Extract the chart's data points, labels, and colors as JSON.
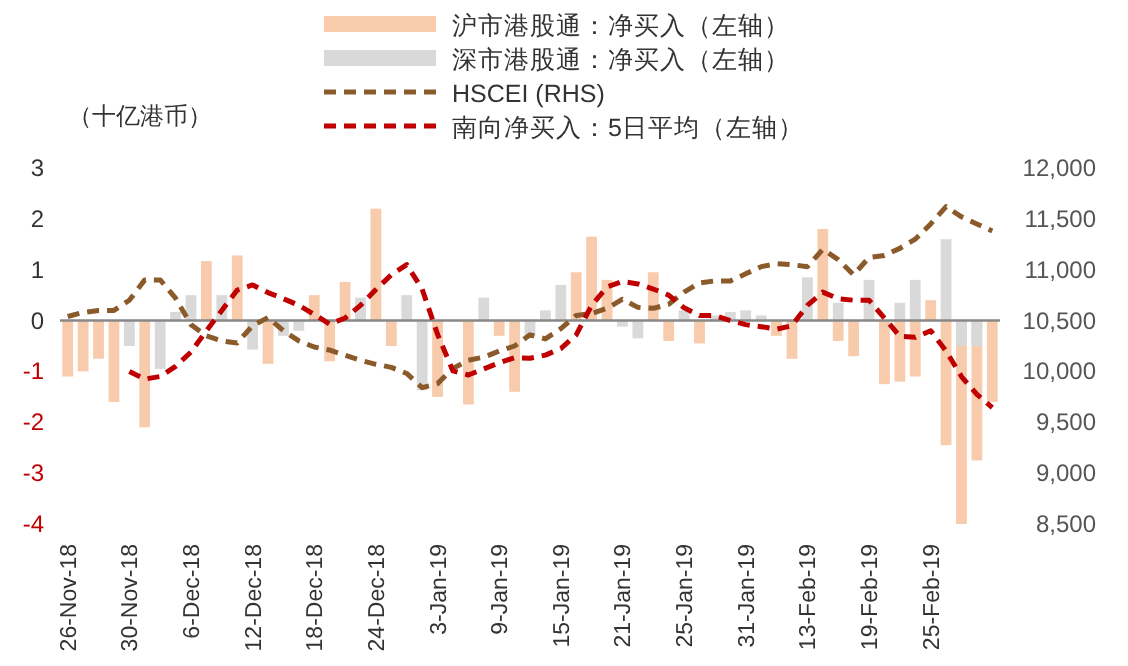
{
  "chart_data": {
    "type": "bar",
    "ylabel": "（十亿港币）",
    "categories": [
      "26-Nov-18",
      null,
      null,
      null,
      "30-Nov-18",
      null,
      null,
      null,
      "6-Dec-18",
      null,
      null,
      null,
      "12-Dec-18",
      null,
      null,
      null,
      "18-Dec-18",
      null,
      null,
      null,
      "24-Dec-18",
      null,
      null,
      null,
      "3-Jan-19",
      null,
      null,
      null,
      "9-Jan-19",
      null,
      null,
      null,
      "15-Jan-19",
      null,
      null,
      null,
      "21-Jan-19",
      null,
      null,
      null,
      "25-Jan-19",
      null,
      null,
      null,
      "31-Jan-19",
      null,
      null,
      null,
      "13-Feb-19",
      null,
      null,
      null,
      "19-Feb-19",
      null,
      null,
      null,
      "25-Feb-19",
      null,
      null,
      null,
      null
    ],
    "series": [
      {
        "name": "沪市港股通：净买入（左轴）",
        "color": "#f8cbad",
        "values": [
          -1.1,
          -1.0,
          -0.75,
          -1.6,
          null,
          -2.1,
          null,
          null,
          null,
          1.17,
          null,
          1.28,
          null,
          -0.85,
          null,
          null,
          0.5,
          -0.8,
          0.76,
          null,
          2.2,
          -0.5,
          null,
          null,
          -1.5,
          null,
          -1.65,
          null,
          -0.3,
          -1.4,
          null,
          null,
          null,
          0.95,
          1.65,
          0.8,
          null,
          null,
          0.95,
          -0.4,
          null,
          -0.45,
          null,
          null,
          null,
          null,
          -0.3,
          -0.75,
          null,
          1.8,
          -0.4,
          -0.7,
          null,
          -1.25,
          -1.2,
          -1.1,
          0.4,
          -2.45,
          -4.0,
          -2.75,
          -1.6
        ]
      },
      {
        "name": "深市港股通：净买入（左轴）",
        "color": "#d9d9d9",
        "values": [
          null,
          null,
          null,
          null,
          -0.5,
          null,
          -0.95,
          0.17,
          0.5,
          null,
          0.5,
          null,
          -0.57,
          null,
          -0.3,
          -0.2,
          null,
          null,
          null,
          0.45,
          null,
          null,
          0.5,
          -1.37,
          null,
          null,
          null,
          0.45,
          null,
          null,
          -0.3,
          0.2,
          0.7,
          null,
          null,
          null,
          -0.12,
          -0.35,
          null,
          null,
          0.2,
          null,
          0.1,
          0.17,
          0.2,
          0.1,
          null,
          null,
          0.85,
          null,
          0.35,
          null,
          0.8,
          null,
          0.35,
          0.8,
          null,
          1.6,
          -0.5,
          -0.5,
          null
        ]
      },
      {
        "name": "HSCEI (RHS)",
        "type": "line",
        "axis": "y2",
        "color": "#8b5a2b",
        "line_style": "dashed",
        "values": [
          10540,
          10580,
          10600,
          10600,
          10700,
          10900,
          10900,
          10720,
          10460,
          10350,
          10300,
          10280,
          10450,
          10530,
          10400,
          10300,
          10240,
          10210,
          10160,
          10110,
          10070,
          10040,
          9980,
          9840,
          9880,
          10030,
          10110,
          10140,
          10200,
          10250,
          10360,
          10320,
          10420,
          10550,
          10570,
          10620,
          10710,
          10630,
          10620,
          10660,
          10780,
          10870,
          10890,
          10890,
          10960,
          11030,
          11060,
          11050,
          11030,
          11200,
          11100,
          10950,
          11120,
          11140,
          11210,
          11300,
          11450,
          11620,
          11520,
          11450,
          11380
        ]
      },
      {
        "name": "南向净买入：5日平均（左轴）",
        "type": "line",
        "color": "#c00000",
        "line_style": "dashed",
        "values": [
          null,
          null,
          null,
          null,
          -1.0,
          -1.15,
          -1.1,
          -0.9,
          -0.62,
          -0.2,
          0.2,
          0.6,
          0.7,
          0.55,
          0.43,
          0.3,
          0.12,
          -0.07,
          0.05,
          0.3,
          0.61,
          0.9,
          1.1,
          0.62,
          -0.27,
          -0.99,
          -1.07,
          -0.95,
          -0.83,
          -0.73,
          -0.74,
          -0.68,
          -0.55,
          -0.28,
          0.3,
          0.66,
          0.77,
          0.72,
          0.62,
          0.5,
          0.25,
          0.1,
          0.1,
          0.0,
          -0.08,
          -0.12,
          -0.17,
          -0.1,
          0.3,
          0.56,
          0.43,
          0.4,
          0.4,
          0.05,
          -0.31,
          -0.33,
          -0.2,
          -0.6,
          -1.1,
          -1.45,
          -1.71
        ]
      }
    ],
    "ylim": [
      -4,
      3
    ],
    "yticks": [
      -4,
      -3,
      -2,
      -1,
      0,
      1,
      2,
      3
    ],
    "y2lim": [
      8500,
      12000
    ],
    "y2ticks": [
      {
        "value": 8500,
        "label": "8,500"
      },
      {
        "value": 9000,
        "label": "9,000"
      },
      {
        "value": 9500,
        "label": "9,500"
      },
      {
        "value": 10000,
        "label": "10,000"
      },
      {
        "value": 10500,
        "label": "10,500"
      },
      {
        "value": 11000,
        "label": "11,000"
      },
      {
        "value": 11500,
        "label": "11,500"
      },
      {
        "value": 12000,
        "label": "12,000"
      }
    ],
    "legend": "top"
  }
}
